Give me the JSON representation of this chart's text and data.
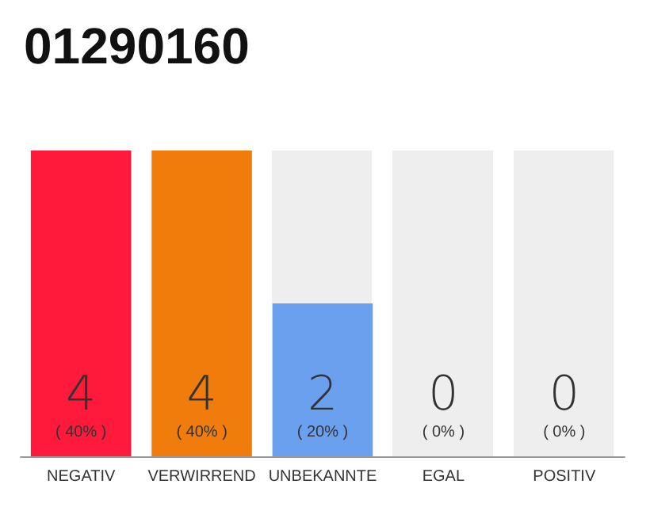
{
  "chart_data": {
    "type": "bar",
    "title": "01290160",
    "categories": [
      "NEGATIV",
      "VERWIRREND",
      "UNBEKANNTE",
      "EGAL",
      "POSITIV"
    ],
    "values": [
      40,
      40,
      20,
      0,
      0
    ],
    "colors": [
      "#ff1a3c",
      "#f07c0c",
      "#6aa0ee",
      "#6aa0ee",
      "#6aa0ee"
    ],
    "value_labels": [
      "4\n( 40% )",
      "4\n( 40% )",
      "2\n( 20% )",
      "0\n( 0% )",
      "0\n( 0% )"
    ]
  }
}
